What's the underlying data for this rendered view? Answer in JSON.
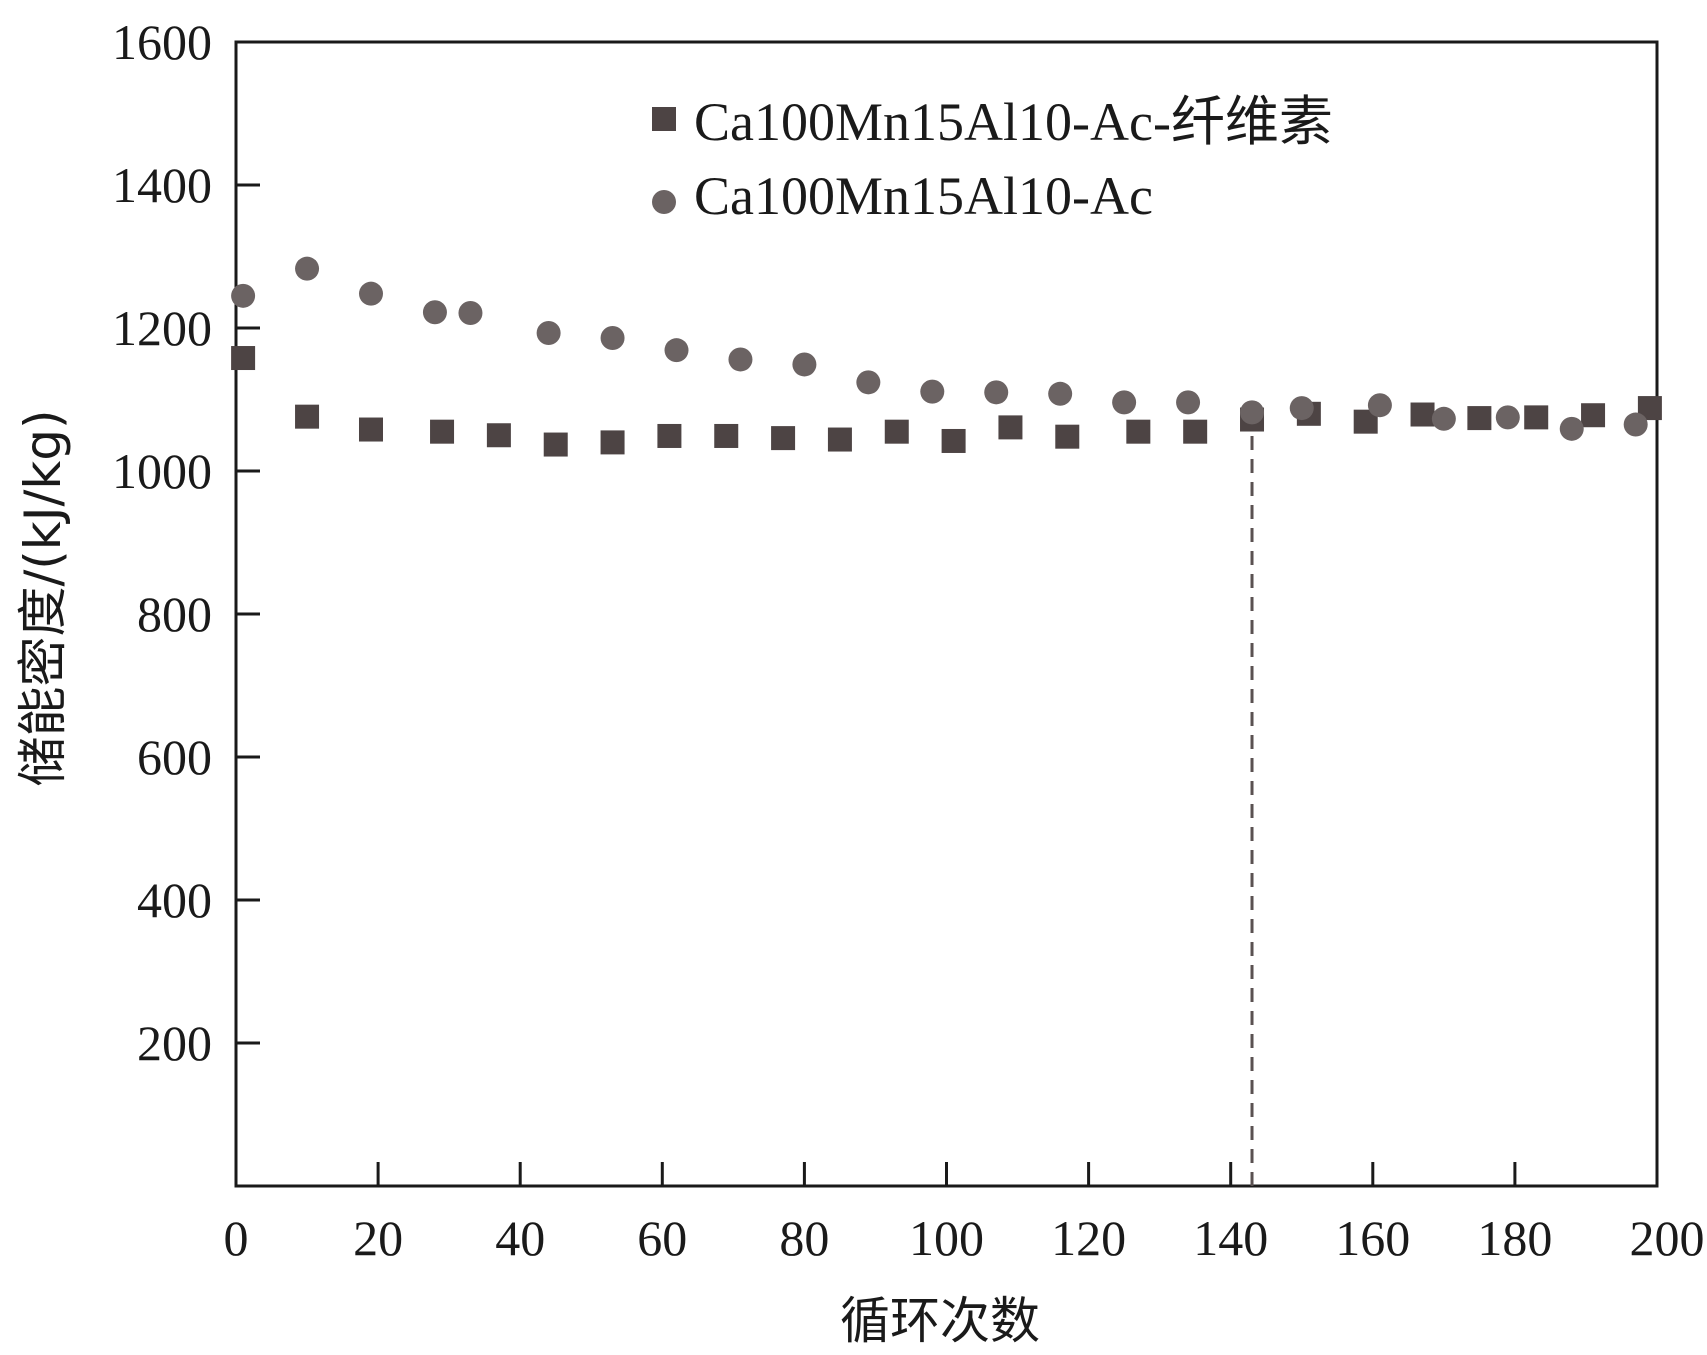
{
  "chart_data": {
    "type": "scatter",
    "title": "",
    "xlabel": "循环次数",
    "ylabel": "储能密度/(kJ/kg)",
    "xlim": [
      0,
      200
    ],
    "ylim": [
      0,
      1600
    ],
    "xticks": [
      0,
      20,
      40,
      60,
      80,
      100,
      120,
      140,
      160,
      180,
      200
    ],
    "yticks": [
      200,
      400,
      600,
      800,
      1000,
      1200,
      1400,
      1600
    ],
    "grid": false,
    "legend_position": "top-center",
    "series": [
      {
        "name": "Ca100Mn15Al10-Ac-纤维素",
        "marker": "square",
        "color": "#4d4444",
        "x": [
          1,
          10,
          19,
          29,
          37,
          45,
          53,
          61,
          69,
          77,
          85,
          93,
          101,
          109,
          117,
          127,
          135,
          143,
          151,
          159,
          167,
          175,
          183,
          191,
          199
        ],
        "y": [
          1158,
          1076,
          1058,
          1055,
          1050,
          1037,
          1040,
          1049,
          1049,
          1046,
          1044,
          1055,
          1042,
          1061,
          1048,
          1055,
          1055,
          1072,
          1080,
          1069,
          1079,
          1074,
          1075,
          1078,
          1088
        ]
      },
      {
        "name": "Ca100Mn15Al10-Ac",
        "marker": "circle",
        "color": "#6b6363",
        "x": [
          1,
          10,
          19,
          28,
          33,
          44,
          53,
          62,
          71,
          80,
          89,
          98,
          107,
          116,
          125,
          134,
          143,
          150,
          161,
          170,
          179,
          188,
          197
        ],
        "y": [
          1245,
          1283,
          1248,
          1222,
          1221,
          1193,
          1186,
          1169,
          1156,
          1149,
          1124,
          1111,
          1110,
          1108,
          1096,
          1096,
          1082,
          1088,
          1092,
          1073,
          1075,
          1059,
          1065
        ]
      }
    ],
    "annotations": [
      {
        "type": "vertical-dashed-line",
        "x": 143,
        "y_from": 0,
        "y_to": 1082
      }
    ]
  }
}
